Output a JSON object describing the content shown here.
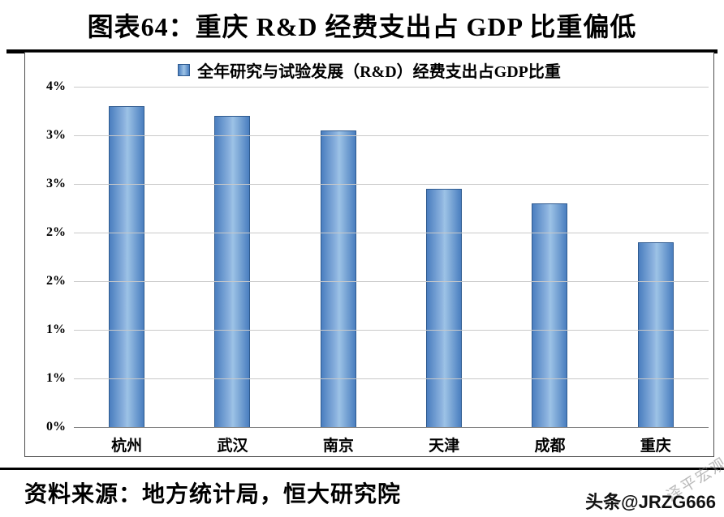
{
  "header": {
    "title": "图表64：重庆 R&D 经费支出占 GDP 比重偏低"
  },
  "legend": {
    "label": "全年研究与试验发展（R&D）经费支出占GDP比重"
  },
  "footer": {
    "source": "资料来源：地方统计局，恒大研究院",
    "byline": "头条@JRZG666",
    "watermark": "泽平宏观"
  },
  "colors": {
    "bar_edge": "#2e5a8f",
    "bar_center": "#9dc3e6",
    "bar_side": "#4a7ebf",
    "gridline": "#c9c9c9"
  },
  "chart_data": {
    "type": "bar",
    "title": "图表64：重庆 R&D 经费支出占 GDP 比重偏低",
    "legend": [
      "全年研究与试验发展（R&D）经费支出占GDP比重"
    ],
    "legend_position": "top",
    "categories": [
      "杭州",
      "武汉",
      "南京",
      "天津",
      "成都",
      "重庆"
    ],
    "values": [
      3.3,
      3.2,
      3.05,
      2.45,
      2.3,
      1.9
    ],
    "unit": "%",
    "xlabel": "",
    "ylabel": "",
    "ylim": [
      0,
      3.5
    ],
    "ytick_step": 0.5,
    "ytick_labels_top_to_bottom": [
      "4%",
      "3%",
      "3%",
      "2%",
      "2%",
      "1%",
      "1%",
      "0%"
    ],
    "grid": true
  }
}
